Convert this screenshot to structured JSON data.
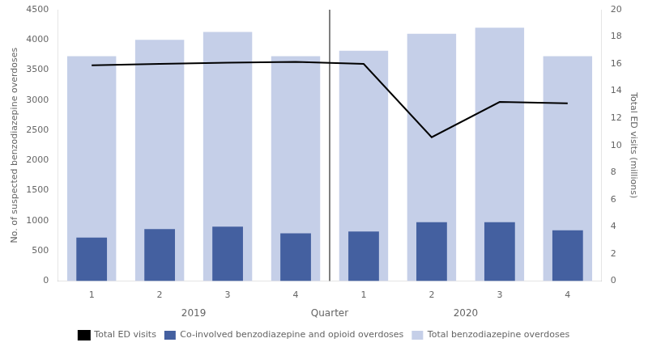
{
  "chart_data": {
    "type": "bar",
    "categories": [
      "1",
      "2",
      "3",
      "4",
      "1",
      "2",
      "3",
      "4"
    ],
    "annotations": [
      "2019",
      "2020"
    ],
    "xlabel": "Quarter",
    "ylabel": "No. of suspected benzodiazepine overdoses",
    "y2label": "Total ED visits (millions)",
    "series": [
      {
        "name": "Total benzodiazepine overdoses",
        "color": "#c5cfe8",
        "values": [
          3730,
          4000,
          4130,
          3730,
          3820,
          4100,
          4200,
          3730
        ]
      },
      {
        "name": "Co-involved benzodiazepine and opioid overdoses",
        "color": "#4460a0",
        "values": [
          720,
          860,
          900,
          790,
          820,
          975,
          975,
          840
        ]
      },
      {
        "name": "Total ED visits",
        "type": "line",
        "axis": "y2",
        "color": "#000000",
        "values": [
          15.9,
          16.0,
          16.1,
          16.15,
          16.0,
          10.6,
          13.2,
          13.1
        ]
      }
    ],
    "ylim": [
      0,
      4500
    ],
    "yticks": [
      0,
      500,
      1000,
      1500,
      2000,
      2500,
      3000,
      3500,
      4000,
      4500
    ],
    "y2lim": [
      0,
      20
    ],
    "y2ticks": [
      0,
      2,
      4,
      6,
      8,
      10,
      12,
      14,
      16,
      18,
      20
    ],
    "grid": false,
    "legend": "bottom"
  }
}
